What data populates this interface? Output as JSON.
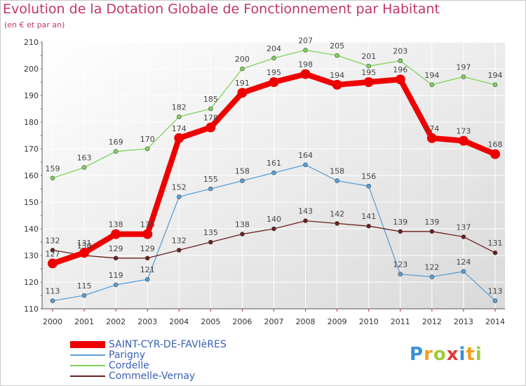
{
  "chart_data": {
    "type": "line",
    "title": "Evolution de la Dotation Globale de Fonctionnement par Habitant",
    "subtitle": "(en € et par an)",
    "x": [
      "2000",
      "2001",
      "2002",
      "2003",
      "2004",
      "2005",
      "2006",
      "2007",
      "2008",
      "2009",
      "2010",
      "2011",
      "2012",
      "2013",
      "2014"
    ],
    "ylim": [
      110,
      210
    ],
    "yticks": [
      "110",
      "120",
      "130",
      "140",
      "150",
      "160",
      "170",
      "180",
      "190",
      "200",
      "210"
    ],
    "grid": true,
    "legend_position": "bottom-left",
    "series": [
      {
        "name": "Cordelle",
        "color": "#7ed35b",
        "values": [
          159,
          163,
          169,
          170,
          182,
          185,
          200,
          204,
          207,
          205,
          201,
          203,
          194,
          197,
          194
        ]
      },
      {
        "name": "Parigny",
        "color": "#5a9fd6",
        "values": [
          113,
          115,
          119,
          121,
          152,
          155,
          158,
          161,
          164,
          158,
          156,
          123,
          122,
          124,
          113
        ]
      },
      {
        "name": "Commelle-Vernay",
        "color": "#6b1f1f",
        "values": [
          132,
          130,
          129,
          129,
          132,
          135,
          138,
          140,
          143,
          142,
          141,
          139,
          139,
          137,
          131
        ]
      },
      {
        "name": "SAINT-CYR-DE-FAVIèRES",
        "color": "#ee0000",
        "values": [
          127,
          131,
          138,
          138,
          174,
          178,
          191,
          195,
          198,
          194,
          195,
          196,
          174,
          173,
          168
        ]
      }
    ]
  },
  "legend": [
    {
      "label": "SAINT-CYR-DE-FAVIèRES",
      "color": "#ee0000",
      "thickness": 10
    },
    {
      "label": "Parigny",
      "color": "#5a9fd6",
      "thickness": 2
    },
    {
      "label": "Cordelle",
      "color": "#7ed35b",
      "thickness": 2
    },
    {
      "label": "Commelle-Vernay",
      "color": "#6b1f1f",
      "thickness": 2
    }
  ],
  "logo": {
    "letters": [
      "P",
      "r",
      "o",
      "x",
      "i",
      "t",
      "i"
    ],
    "colors": [
      "#3a8fd8",
      "#f0a020",
      "#9ccc3a",
      "#e03a3a",
      "#3a8fd8",
      "#f0a020",
      "#9ccc3a"
    ]
  }
}
